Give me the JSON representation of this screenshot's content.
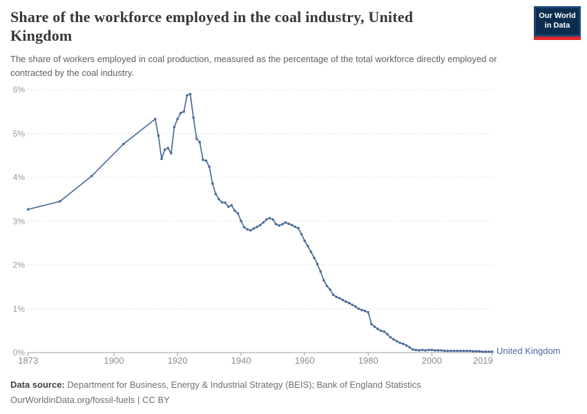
{
  "header": {
    "title_lines": [
      "Share of the workforce employed in the coal industry, United",
      "Kingdom"
    ],
    "title_full": "Share of the workforce employed in the coal industry, United Kingdom",
    "subtitle_lines": [
      "The share of workers employed in coal production, measured as the percentage of the total workforce directly employed or",
      "contracted by the coal industry."
    ],
    "logo": {
      "line1": "Our World",
      "line2": "in Data"
    }
  },
  "entity_label": "United Kingdom",
  "footer": {
    "datasource_label": "Data source:",
    "datasource_text": "Department for Business, Energy & Industrial Strategy (BEIS); Bank of England Statistics",
    "url_line": "OurWorldinData.org/fossil-fuels | CC BY"
  },
  "colors": {
    "line": "#4c6a9c",
    "gridline": "#dadada",
    "axis": "#9c9c9c",
    "tick_label": "#8c8c8c",
    "logo_navy": "#0c2d4f",
    "logo_border": "#1b4575",
    "logo_red": "#e1272e"
  },
  "chart_data": {
    "type": "line",
    "title": "Share of the workforce employed in the coal industry, United Kingdom",
    "xlabel": "",
    "ylabel": "",
    "xlim": [
      1873,
      2019
    ],
    "ylim": [
      0,
      6
    ],
    "grid": "horizontal-dashed",
    "legend_position": "end-of-line-label",
    "x_ticks": [
      1873,
      1900,
      1920,
      1940,
      1960,
      1980,
      2000,
      2019
    ],
    "y_ticks": [
      "0%",
      "1%",
      "2%",
      "3%",
      "4%",
      "5%",
      "6%"
    ],
    "series": [
      {
        "name": "United Kingdom",
        "color": "#4c6a9c",
        "unit": "%",
        "points": [
          [
            1873,
            3.27
          ],
          [
            1883,
            3.45
          ],
          [
            1893,
            4.03
          ],
          [
            1903,
            4.76
          ],
          [
            1913,
            5.33
          ],
          [
            1914,
            4.95
          ],
          [
            1915,
            4.42
          ],
          [
            1916,
            4.63
          ],
          [
            1917,
            4.67
          ],
          [
            1918,
            4.55
          ],
          [
            1919,
            5.15
          ],
          [
            1920,
            5.33
          ],
          [
            1921,
            5.47
          ],
          [
            1922,
            5.5
          ],
          [
            1923,
            5.87
          ],
          [
            1924,
            5.9
          ],
          [
            1925,
            5.36
          ],
          [
            1926,
            4.88
          ],
          [
            1927,
            4.8
          ],
          [
            1928,
            4.4
          ],
          [
            1929,
            4.38
          ],
          [
            1930,
            4.24
          ],
          [
            1931,
            3.86
          ],
          [
            1932,
            3.62
          ],
          [
            1933,
            3.5
          ],
          [
            1934,
            3.43
          ],
          [
            1935,
            3.42
          ],
          [
            1936,
            3.33
          ],
          [
            1937,
            3.36
          ],
          [
            1938,
            3.24
          ],
          [
            1939,
            3.18
          ],
          [
            1940,
            3.0
          ],
          [
            1941,
            2.86
          ],
          [
            1942,
            2.81
          ],
          [
            1943,
            2.79
          ],
          [
            1944,
            2.83
          ],
          [
            1945,
            2.87
          ],
          [
            1946,
            2.91
          ],
          [
            1947,
            2.97
          ],
          [
            1948,
            3.04
          ],
          [
            1949,
            3.07
          ],
          [
            1950,
            3.04
          ],
          [
            1951,
            2.93
          ],
          [
            1952,
            2.9
          ],
          [
            1953,
            2.93
          ],
          [
            1954,
            2.97
          ],
          [
            1955,
            2.94
          ],
          [
            1956,
            2.91
          ],
          [
            1957,
            2.87
          ],
          [
            1958,
            2.84
          ],
          [
            1959,
            2.7
          ],
          [
            1960,
            2.55
          ],
          [
            1961,
            2.43
          ],
          [
            1962,
            2.3
          ],
          [
            1963,
            2.16
          ],
          [
            1964,
            2.02
          ],
          [
            1965,
            1.85
          ],
          [
            1966,
            1.65
          ],
          [
            1967,
            1.52
          ],
          [
            1968,
            1.44
          ],
          [
            1969,
            1.32
          ],
          [
            1970,
            1.27
          ],
          [
            1971,
            1.24
          ],
          [
            1972,
            1.2
          ],
          [
            1973,
            1.16
          ],
          [
            1974,
            1.13
          ],
          [
            1975,
            1.09
          ],
          [
            1976,
            1.05
          ],
          [
            1977,
            1.0
          ],
          [
            1978,
            0.97
          ],
          [
            1979,
            0.95
          ],
          [
            1980,
            0.92
          ],
          [
            1981,
            0.65
          ],
          [
            1982,
            0.59
          ],
          [
            1983,
            0.54
          ],
          [
            1984,
            0.5
          ],
          [
            1985,
            0.48
          ],
          [
            1986,
            0.42
          ],
          [
            1987,
            0.35
          ],
          [
            1988,
            0.3
          ],
          [
            1989,
            0.26
          ],
          [
            1990,
            0.22
          ],
          [
            1991,
            0.2
          ],
          [
            1992,
            0.16
          ],
          [
            1993,
            0.12
          ],
          [
            1994,
            0.07
          ],
          [
            1995,
            0.06
          ],
          [
            1996,
            0.05
          ],
          [
            1997,
            0.06
          ],
          [
            1998,
            0.05
          ],
          [
            1999,
            0.06
          ],
          [
            2000,
            0.06
          ],
          [
            2001,
            0.05
          ],
          [
            2002,
            0.05
          ],
          [
            2003,
            0.05
          ],
          [
            2004,
            0.04
          ],
          [
            2005,
            0.04
          ],
          [
            2006,
            0.04
          ],
          [
            2007,
            0.04
          ],
          [
            2008,
            0.04
          ],
          [
            2009,
            0.04
          ],
          [
            2010,
            0.04
          ],
          [
            2011,
            0.04
          ],
          [
            2012,
            0.04
          ],
          [
            2013,
            0.03
          ],
          [
            2014,
            0.03
          ],
          [
            2015,
            0.03
          ],
          [
            2016,
            0.02
          ],
          [
            2017,
            0.02
          ],
          [
            2018,
            0.02
          ],
          [
            2019,
            0.02
          ]
        ]
      }
    ]
  }
}
